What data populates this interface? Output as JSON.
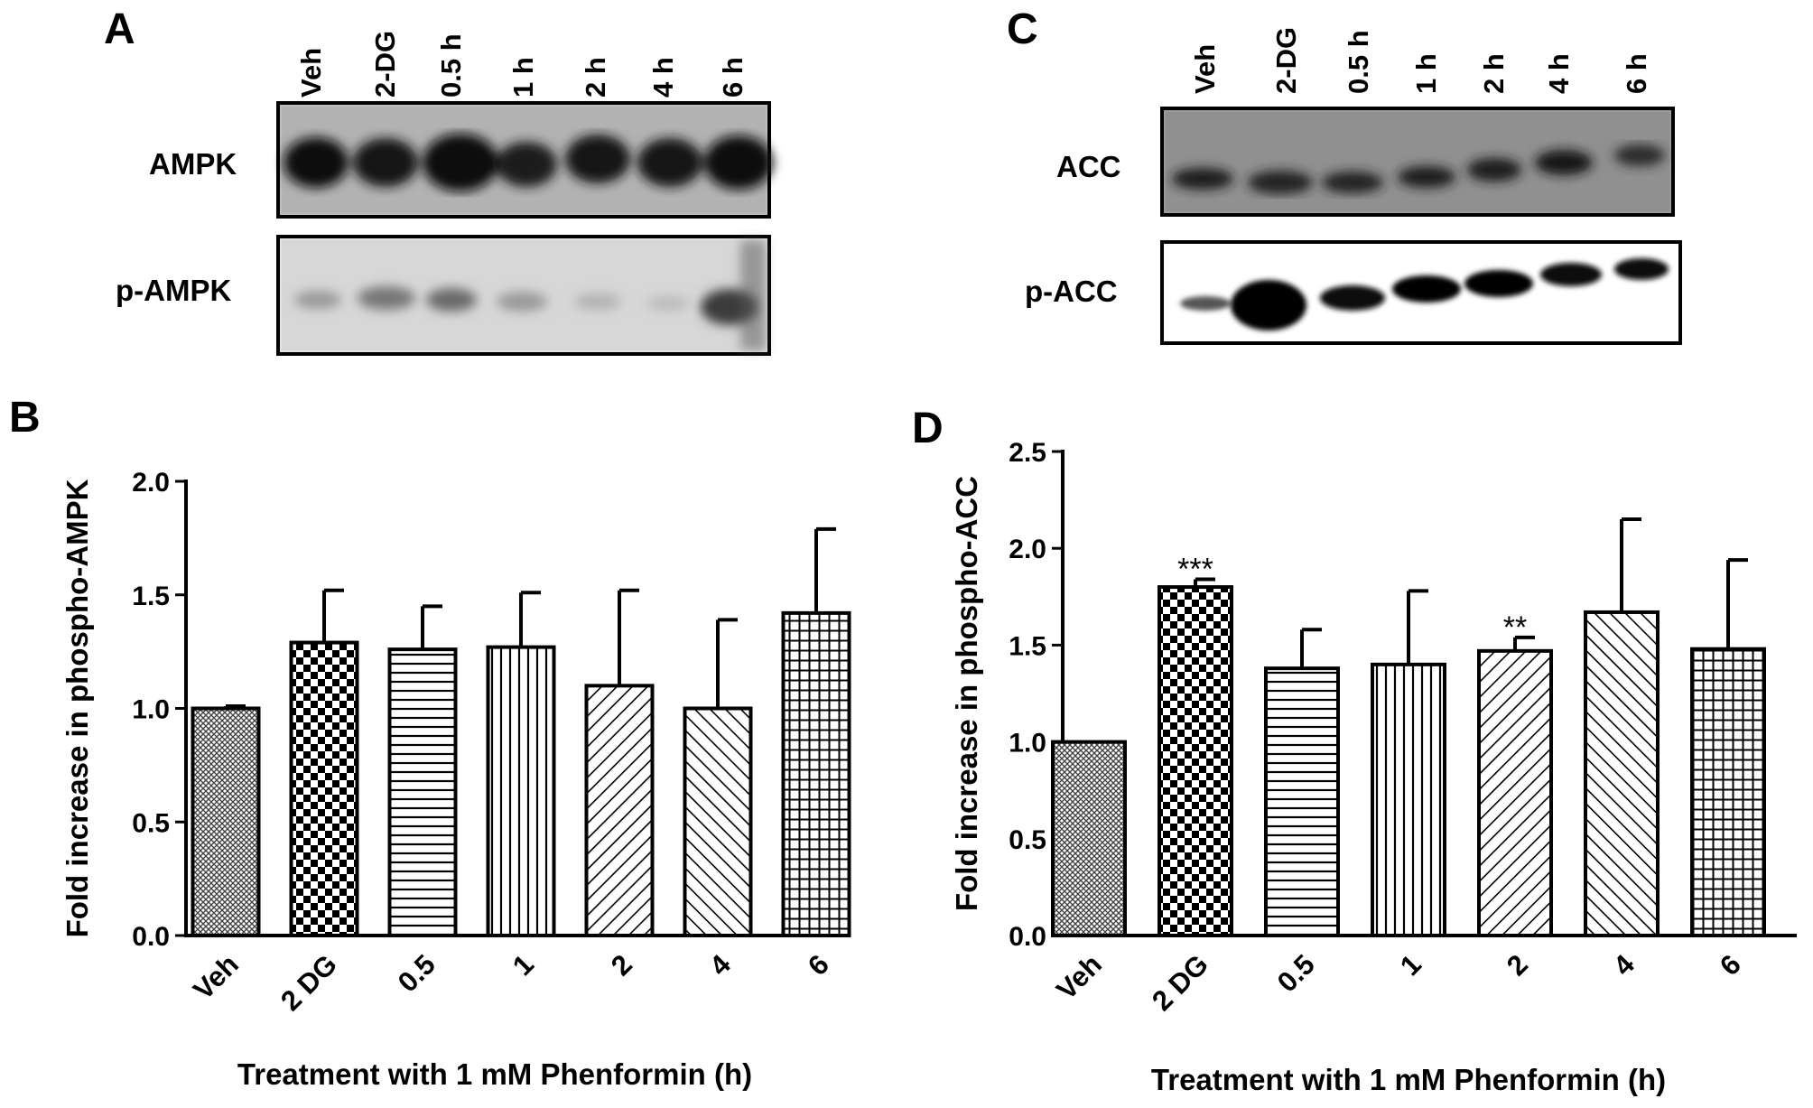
{
  "panels": {
    "A": {
      "label": "A",
      "lanes": [
        "Veh",
        "2-DG",
        "0.5 h",
        "1 h",
        "2 h",
        "4 h",
        "6 h"
      ],
      "rows": [
        "AMPK",
        "p-AMPK"
      ]
    },
    "C": {
      "label": "C",
      "lanes": [
        "Veh",
        "2-DG",
        "0.5 h",
        "1 h",
        "2 h",
        "4 h",
        "6 h"
      ],
      "rows": [
        "ACC",
        "p-ACC"
      ]
    }
  },
  "chart_data": [
    {
      "panel": "B",
      "type": "bar",
      "categories": [
        "Veh",
        "2 DG",
        "0.5",
        "1",
        "2",
        "4",
        "6"
      ],
      "values": [
        1.0,
        1.29,
        1.26,
        1.27,
        1.1,
        1.0,
        1.42
      ],
      "errors": [
        0.01,
        0.23,
        0.19,
        0.24,
        0.42,
        0.39,
        0.37
      ],
      "significance": [
        "",
        "",
        "",
        "",
        "",
        "",
        ""
      ],
      "xlabel": "Treatment with 1 mM Phenformin (h)",
      "ylabel": "Fold increase in phospho-AMPK",
      "ylim": [
        0,
        2.0
      ],
      "yticks": [
        "0.0",
        "0.5",
        "1.0",
        "1.5",
        "2.0"
      ],
      "patterns": [
        "fine-crosshatch",
        "checker",
        "horizontal",
        "vertical",
        "diagonal-right",
        "diagonal-left",
        "grid"
      ],
      "grid": false
    },
    {
      "panel": "D",
      "type": "bar",
      "categories": [
        "Veh",
        "2 DG",
        "0.5",
        "1",
        "2",
        "4",
        "6"
      ],
      "values": [
        1.0,
        1.8,
        1.38,
        1.4,
        1.47,
        1.67,
        1.48
      ],
      "errors": [
        0.0,
        0.04,
        0.2,
        0.38,
        0.07,
        0.48,
        0.46
      ],
      "significance": [
        "",
        "***",
        "",
        "",
        "**",
        "",
        ""
      ],
      "xlabel": "Treatment with 1 mM Phenformin (h)",
      "ylabel": "Fold increase in phospho-ACC",
      "ylim": [
        0,
        2.5
      ],
      "yticks": [
        "0.0",
        "0.5",
        "1.0",
        "1.5",
        "2.0",
        "2.5"
      ],
      "patterns": [
        "fine-crosshatch",
        "checker",
        "horizontal",
        "vertical",
        "diagonal-right",
        "diagonal-left",
        "grid"
      ],
      "grid": false
    }
  ],
  "chart_labels": [
    "B",
    "D"
  ]
}
